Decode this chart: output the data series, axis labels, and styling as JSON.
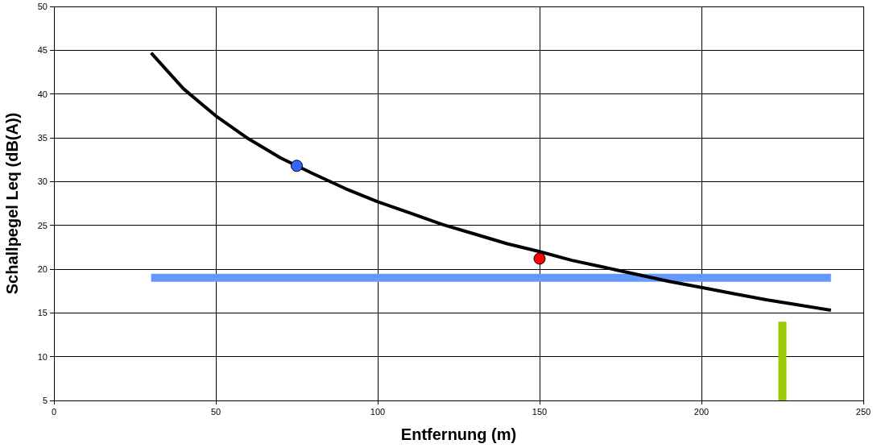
{
  "chart_data": {
    "type": "line",
    "xlabel": "Entfernung (m)",
    "ylabel": "Schallpegel Leq (dB(A))",
    "xlim": [
      0,
      250
    ],
    "ylim": [
      5,
      50
    ],
    "xticks": [
      0,
      50,
      100,
      150,
      200,
      250
    ],
    "yticks": [
      5,
      10,
      15,
      20,
      25,
      30,
      35,
      40,
      45,
      50
    ],
    "grid": true,
    "legend": false,
    "series": [
      {
        "type": "line",
        "color": "#000000",
        "marker": "none",
        "x": [
          30,
          40,
          50,
          60,
          70,
          80,
          90,
          100,
          110,
          120,
          130,
          140,
          150,
          160,
          170,
          180,
          190,
          200,
          210,
          220,
          230,
          240
        ],
        "values": [
          44.7,
          40.6,
          37.5,
          34.9,
          32.7,
          30.9,
          29.2,
          27.7,
          26.4,
          25.1,
          24.0,
          22.9,
          22.0,
          21.0,
          20.2,
          19.4,
          18.6,
          17.9,
          17.2,
          16.5,
          15.9,
          15.3
        ]
      },
      {
        "type": "line",
        "color": "#6699ff",
        "marker": "none",
        "x": [
          30,
          240
        ],
        "values": [
          19,
          19
        ]
      },
      {
        "type": "line",
        "color": "#99cc00",
        "marker": "none",
        "x": [
          225,
          225
        ],
        "values": [
          5,
          14
        ]
      },
      {
        "type": "scatter",
        "color": "#3366ff",
        "marker": "circle",
        "x": [
          75
        ],
        "values": [
          31.8
        ]
      },
      {
        "type": "scatter",
        "color": "#ff0000",
        "marker": "circle",
        "x": [
          150
        ],
        "values": [
          21.2
        ]
      }
    ]
  }
}
